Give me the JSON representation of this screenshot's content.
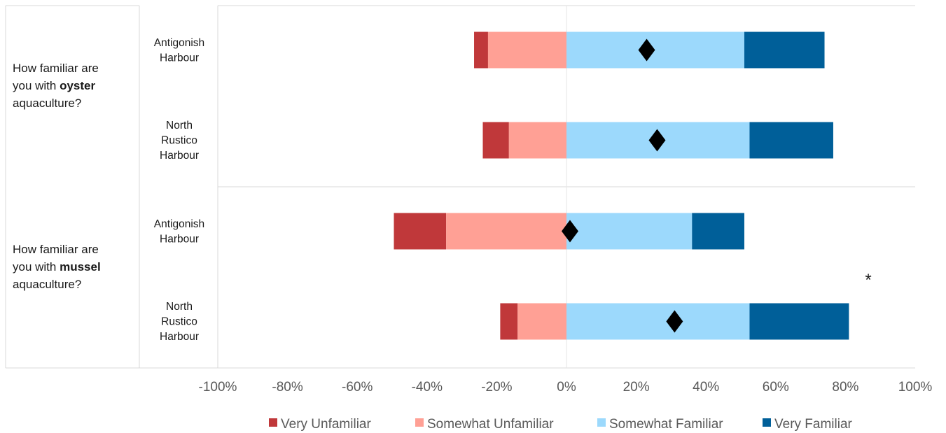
{
  "chart_data": {
    "type": "bar",
    "orientation": "horizontal",
    "stacking": "diverging",
    "title": "",
    "xlabel": "",
    "ylabel": "",
    "xlim": [
      -1.0,
      1.0
    ],
    "x_ticks": [
      -1.0,
      -0.8,
      -0.6,
      -0.4,
      -0.2,
      0.0,
      0.2,
      0.4,
      0.6,
      0.8,
      1.0
    ],
    "x_tick_labels": [
      "-100%",
      "-80%",
      "-60%",
      "-40%",
      "-20%",
      "0%",
      "20%",
      "40%",
      "60%",
      "80%",
      "100%"
    ],
    "legend_position": "bottom",
    "groups": [
      {
        "question_pre": "How familiar are",
        "question_mid_pre": "you with ",
        "question_bold": "oyster",
        "question_post": "aquaculture?",
        "rows": [
          {
            "label_lines": [
              "Antigonish",
              "Harbour"
            ],
            "very_unfamiliar": 0.04,
            "somewhat_unfamiliar": 0.225,
            "somewhat_familiar": 0.51,
            "very_familiar": 0.23,
            "mean": 0.23
          },
          {
            "label_lines": [
              "North",
              "Rustico",
              "Harbour"
            ],
            "very_unfamiliar": 0.075,
            "somewhat_unfamiliar": 0.165,
            "somewhat_familiar": 0.525,
            "very_familiar": 0.24,
            "mean": 0.26
          }
        ]
      },
      {
        "question_pre": "How familiar are",
        "question_mid_pre": "you with ",
        "question_bold": "mussel",
        "question_post": "aquaculture?",
        "significance_marker": "*",
        "rows": [
          {
            "label_lines": [
              "Antigonish",
              "Harbour"
            ],
            "very_unfamiliar": 0.15,
            "somewhat_unfamiliar": 0.345,
            "somewhat_familiar": 0.36,
            "very_familiar": 0.15,
            "mean": 0.01
          },
          {
            "label_lines": [
              "North",
              "Rustico",
              "Harbour"
            ],
            "very_unfamiliar": 0.05,
            "somewhat_unfamiliar": 0.14,
            "somewhat_familiar": 0.525,
            "very_familiar": 0.285,
            "mean": 0.31
          }
        ]
      }
    ],
    "series": [
      {
        "key": "very_unfamiliar",
        "name": "Very Unfamiliar",
        "color": "#c0383a"
      },
      {
        "key": "somewhat_unfamiliar",
        "name": "Somewhat Unfamiliar",
        "color": "#ffa095"
      },
      {
        "key": "somewhat_familiar",
        "name": "Somewhat Familiar",
        "color": "#9cd9fc"
      },
      {
        "key": "very_familiar",
        "name": "Very Familiar",
        "color": "#005f99"
      }
    ],
    "mean_marker_color": "#000000"
  }
}
